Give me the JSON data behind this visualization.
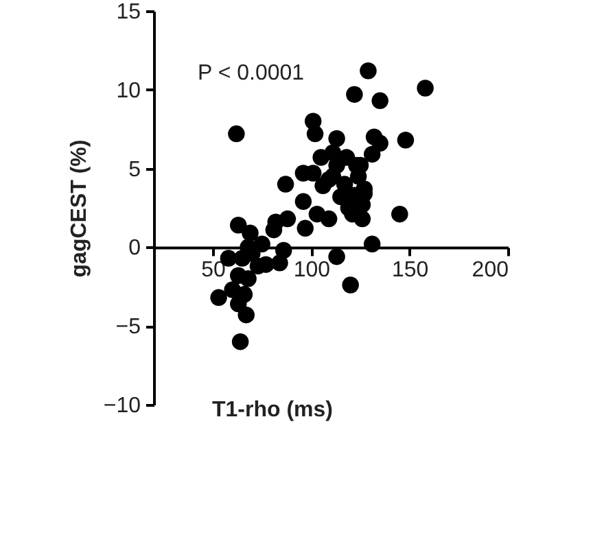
{
  "chart_data": {
    "type": "scatter",
    "xlabel": "T1-rho (ms)",
    "ylabel": "gagCEST (%)",
    "annotations": [
      "P < 0.0001"
    ],
    "xlim": [
      20,
      200
    ],
    "xticks": [
      50,
      100,
      150,
      200
    ],
    "ylim": [
      -10,
      15
    ],
    "yticks": [
      -10,
      -5,
      0,
      5,
      10,
      15
    ],
    "grid": false,
    "marker": "circle",
    "series": [
      {
        "color": "#000000",
        "x": [
          129,
          122,
          135,
          158,
          62,
          101,
          102,
          113,
          132,
          135,
          148,
          131,
          96,
          87,
          96,
          103,
          109,
          97,
          145,
          131,
          82,
          88,
          81,
          63,
          69,
          75,
          68,
          86,
          84,
          77,
          73,
          58,
          65,
          70,
          63,
          68,
          113,
          120,
          60,
          66,
          53,
          63,
          67,
          64,
          106,
          111,
          115,
          122,
          126,
          126,
          121,
          119,
          113,
          125,
          127,
          105,
          111,
          118,
          123,
          124,
          109,
          117,
          101,
          127
        ],
        "values": [
          11.2,
          9.7,
          9.3,
          10.1,
          7.2,
          8.0,
          7.2,
          6.9,
          7.0,
          6.6,
          6.8,
          5.9,
          4.7,
          4.0,
          2.9,
          2.1,
          1.8,
          1.2,
          2.1,
          0.2,
          1.6,
          1.8,
          1.1,
          1.4,
          0.9,
          0.2,
          0.0,
          -0.2,
          -1.0,
          -1.1,
          -1.2,
          -0.7,
          -0.7,
          -0.4,
          -1.8,
          -2.0,
          -0.6,
          -2.4,
          -2.7,
          -3.0,
          -3.2,
          -3.6,
          -4.3,
          -6.0,
          3.9,
          4.5,
          3.2,
          3.3,
          2.7,
          1.8,
          2.1,
          2.5,
          5.2,
          5.2,
          3.4,
          5.7,
          6.0,
          5.7,
          5.2,
          4.5,
          4.3,
          4.0,
          4.7,
          3.7
        ]
      }
    ]
  }
}
